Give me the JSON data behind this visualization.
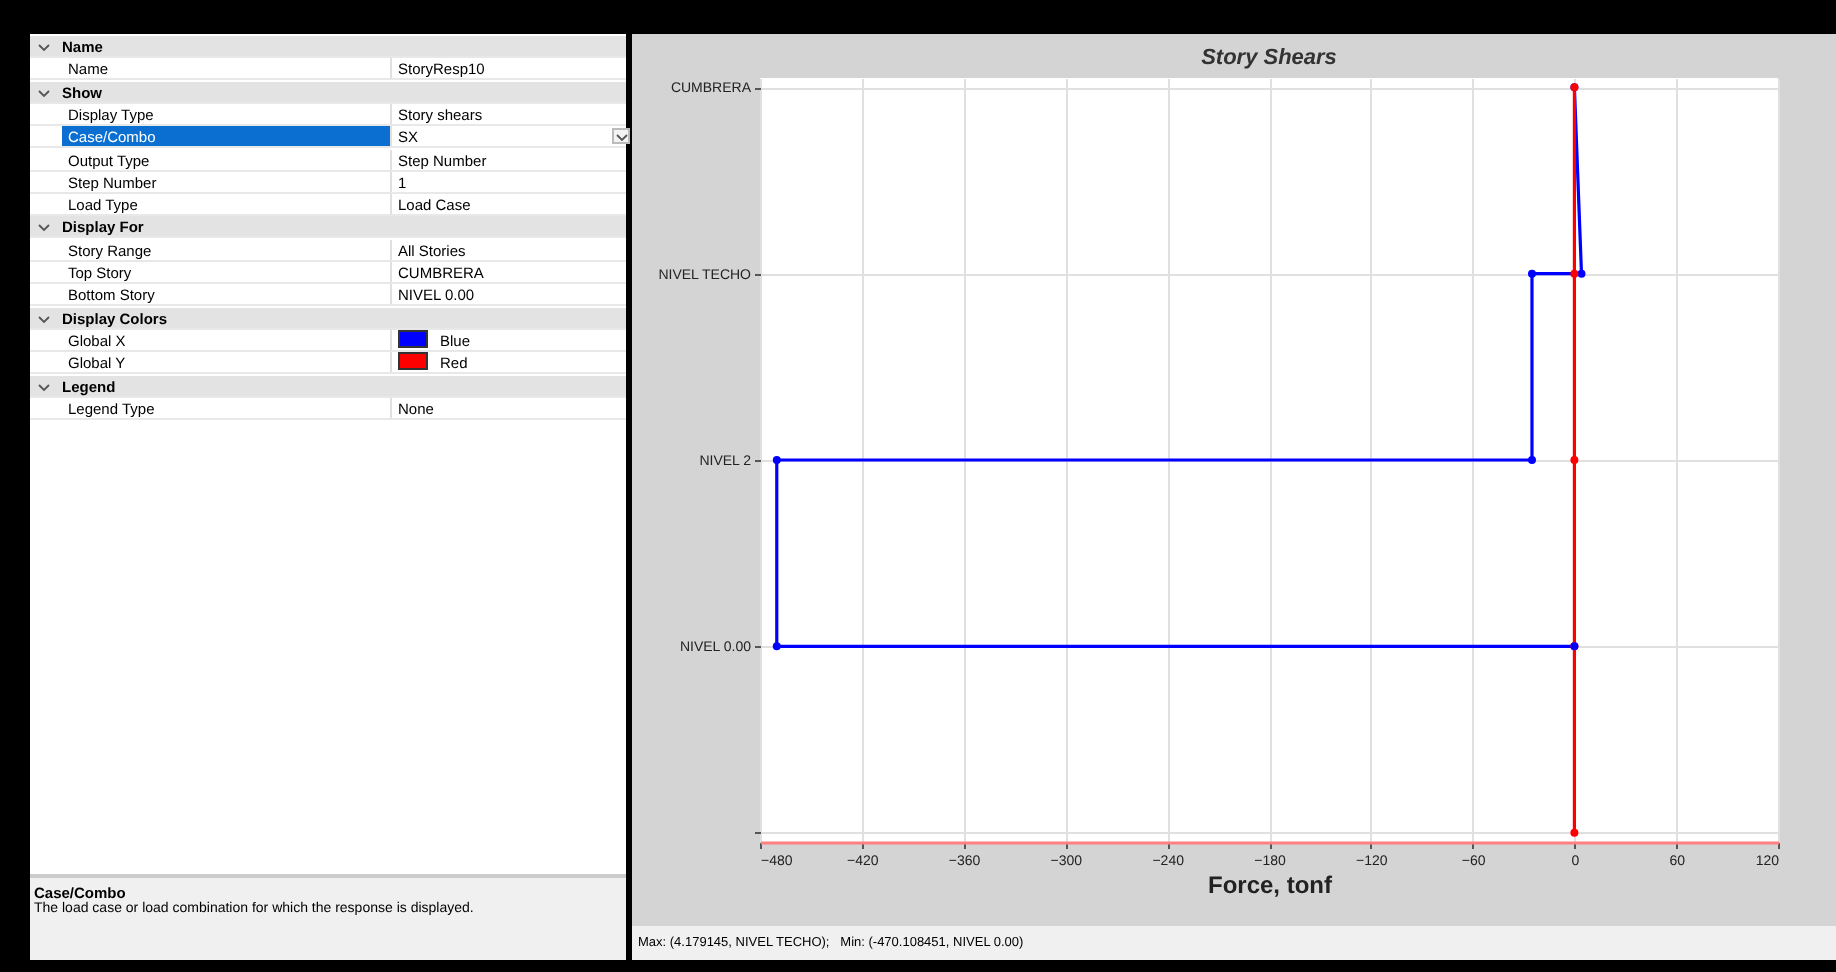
{
  "chart_data": [
    {
      "type": "other",
      "title": "Name",
      "categories": [
        "Name"
      ],
      "annotations": [
        "StoryResp10"
      ]
    },
    {
      "type": "other",
      "title": "Show",
      "categories": [
        "Display Type",
        "Case/Combo",
        "Output Type",
        "Step Number",
        "Load Type"
      ],
      "annotations": [
        "Story shears",
        "SX",
        "Step Number",
        "1",
        "Load Case"
      ]
    },
    {
      "type": "other",
      "title": "Display For",
      "categories": [
        "Story Range",
        "Top Story",
        "Bottom Story"
      ],
      "annotations": [
        "All Stories",
        "CUMBRERA",
        "NIVEL 0.00"
      ]
    },
    {
      "type": "other",
      "title": "Display Colors",
      "categories": [
        "Global X",
        "Global Y"
      ],
      "annotations": [
        "Blue",
        "Red"
      ],
      "colors": [
        "#0000ff",
        "#ff0000"
      ]
    },
    {
      "type": "other",
      "title": "Legend",
      "categories": [
        "Legend Type"
      ],
      "annotations": [
        "None"
      ]
    },
    {
      "type": "other",
      "title": "Case/Combo",
      "annotations": [
        "The load case or load combination for which the response is displayed."
      ]
    },
    {
      "type": "line",
      "orientation": "horizontal",
      "title": "Story Shears",
      "xlabel": "Force, tonf",
      "xlim": [
        -480,
        120
      ],
      "xticks": [
        -480,
        -420,
        -360,
        -300,
        -240,
        -180,
        -120,
        -60,
        0,
        60,
        120
      ],
      "categories": [
        "CUMBRERA",
        "NIVEL TECHO",
        "NIVEL 2",
        "NIVEL 0.00",
        null
      ],
      "grid": true,
      "marker": "circle",
      "line_style": "solid",
      "annotations": [
        "Max: (4.179145, NIVEL TECHO);   Min: (-470.108451, NIVEL 0.00)"
      ],
      "series": [
        {
          "color": "#0000ff",
          "x": [
            "CUMBRERA",
            "NIVEL TECHO",
            "NIVEL TECHO",
            "NIVEL 2",
            "NIVEL 2",
            "NIVEL 0.00",
            "NIVEL 0.00"
          ],
          "values": [
            0,
            4.179145,
            -25,
            -25,
            -470.108451,
            -470.108451,
            0
          ]
        },
        {
          "color": "#ff0000",
          "values": [
            0,
            0,
            0,
            0,
            0
          ]
        }
      ]
    }
  ]
}
